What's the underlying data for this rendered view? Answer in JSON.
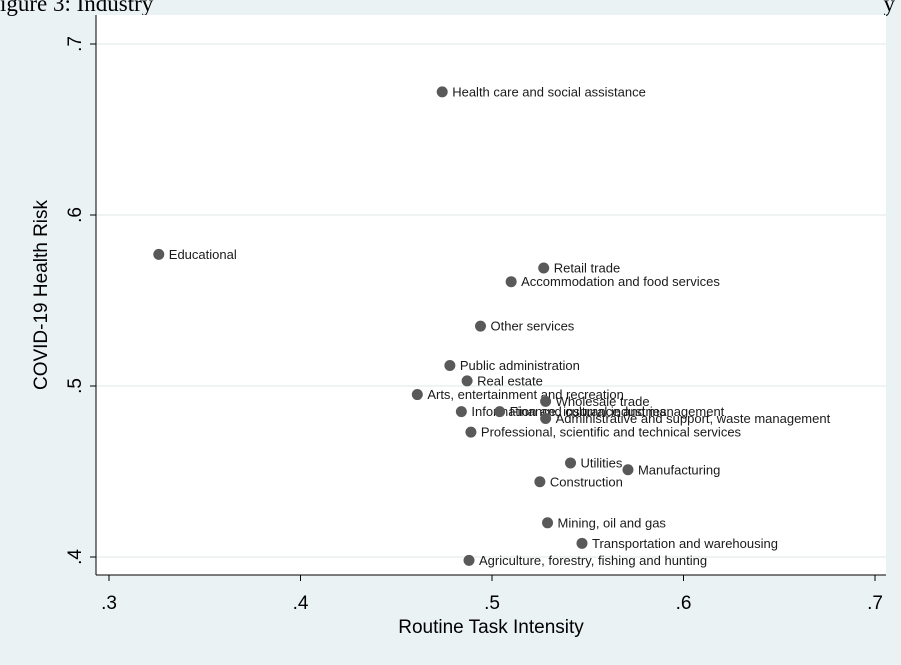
{
  "caption": {
    "left": "igure 3: Industry",
    "right": "y"
  },
  "chart_data": {
    "type": "scatter",
    "xlabel": "Routine Task Intensity",
    "ylabel": "COVID-19 Health Risk",
    "xlim": [
      0.3,
      0.7
    ],
    "ylim": [
      0.4,
      0.7
    ],
    "xticks": [
      ".3",
      ".4",
      ".5",
      ".6",
      ".7"
    ],
    "yticks": [
      ".4",
      ".5",
      ".6",
      ".7"
    ],
    "grid": "horizontal",
    "marker_color": "#595959",
    "points": [
      {
        "label": "Health care and social assistance",
        "x": 0.474,
        "y": 0.672
      },
      {
        "label": "Educational",
        "x": 0.326,
        "y": 0.577
      },
      {
        "label": "Retail trade",
        "x": 0.527,
        "y": 0.569
      },
      {
        "label": "Accommodation and food services",
        "x": 0.51,
        "y": 0.561
      },
      {
        "label": "Other services",
        "x": 0.494,
        "y": 0.535
      },
      {
        "label": "Public administration",
        "x": 0.478,
        "y": 0.512
      },
      {
        "label": "Real estate",
        "x": 0.487,
        "y": 0.503
      },
      {
        "label": "Arts, entertainment and recreation",
        "x": 0.461,
        "y": 0.495
      },
      {
        "label": "Wholesale trade",
        "x": 0.528,
        "y": 0.491
      },
      {
        "label": "Information and cultural industries",
        "x": 0.484,
        "y": 0.485
      },
      {
        "label": "Finance, insurance and management",
        "x": 0.504,
        "y": 0.485
      },
      {
        "label": "Administrative and support, waste management",
        "x": 0.528,
        "y": 0.481
      },
      {
        "label": "Professional, scientific and technical services",
        "x": 0.489,
        "y": 0.473
      },
      {
        "label": "Utilities",
        "x": 0.541,
        "y": 0.455
      },
      {
        "label": "Manufacturing",
        "x": 0.571,
        "y": 0.451
      },
      {
        "label": "Construction",
        "x": 0.525,
        "y": 0.444
      },
      {
        "label": "Mining, oil and gas",
        "x": 0.529,
        "y": 0.42
      },
      {
        "label": "Transportation and warehousing",
        "x": 0.547,
        "y": 0.408
      },
      {
        "label": "Agriculture, forestry, fishing and hunting",
        "x": 0.488,
        "y": 0.398
      }
    ]
  }
}
